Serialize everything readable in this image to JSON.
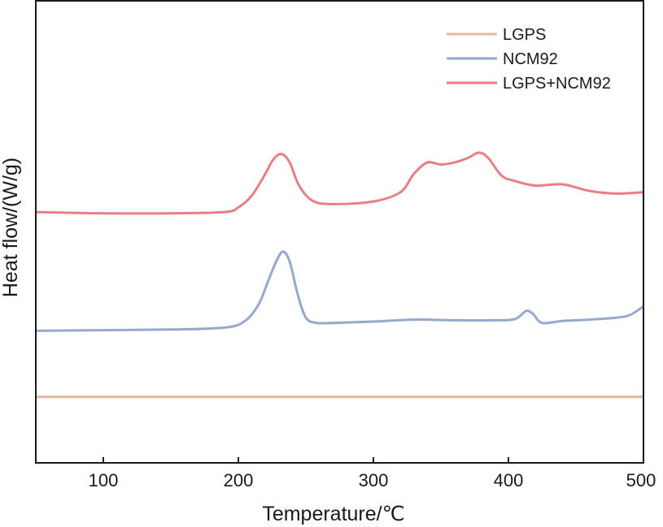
{
  "chart_data": {
    "type": "line",
    "title": "",
    "xlabel": "Temperature/℃",
    "ylabel": "Heat flow/(W/g)",
    "xlim": [
      50,
      500
    ],
    "xticks": [
      100,
      200,
      300,
      400,
      500
    ],
    "y_ticks_shown": false,
    "grid": false,
    "legend_position": "top-right",
    "series": [
      {
        "name": "LGPS",
        "color": "#e0b9a0",
        "x": [
          50,
          100,
          150,
          200,
          250,
          300,
          350,
          400,
          450,
          500
        ],
        "y": [
          -1.0,
          -1.0,
          -1.0,
          -1.0,
          -1.0,
          -1.0,
          -1.0,
          -1.0,
          -1.0,
          -1.0
        ]
      },
      {
        "name": "NCM92",
        "color": "#94a9cc",
        "x": [
          50,
          100,
          150,
          190,
          205,
          215,
          222,
          228,
          233,
          238,
          244,
          250,
          258,
          270,
          300,
          330,
          360,
          390,
          405,
          413,
          418,
          425,
          440,
          460,
          480,
          490,
          500
        ],
        "y": [
          0.0,
          0.01,
          0.02,
          0.05,
          0.15,
          0.4,
          0.75,
          1.05,
          1.2,
          1.05,
          0.55,
          0.2,
          0.12,
          0.12,
          0.14,
          0.17,
          0.16,
          0.16,
          0.18,
          0.3,
          0.26,
          0.12,
          0.15,
          0.17,
          0.2,
          0.24,
          0.37
        ]
      },
      {
        "name": "LGPS+NCM92",
        "color": "#e87f86",
        "x": [
          50,
          100,
          150,
          190,
          200,
          210,
          220,
          226,
          232,
          238,
          245,
          255,
          270,
          300,
          320,
          330,
          340,
          350,
          360,
          370,
          378,
          385,
          395,
          405,
          420,
          440,
          460,
          480,
          500
        ],
        "y": [
          1.8,
          1.78,
          1.78,
          1.8,
          1.87,
          2.05,
          2.38,
          2.6,
          2.68,
          2.55,
          2.2,
          1.97,
          1.92,
          1.96,
          2.1,
          2.38,
          2.55,
          2.52,
          2.55,
          2.62,
          2.7,
          2.62,
          2.35,
          2.27,
          2.2,
          2.22,
          2.12,
          2.08,
          2.1
        ]
      }
    ]
  }
}
